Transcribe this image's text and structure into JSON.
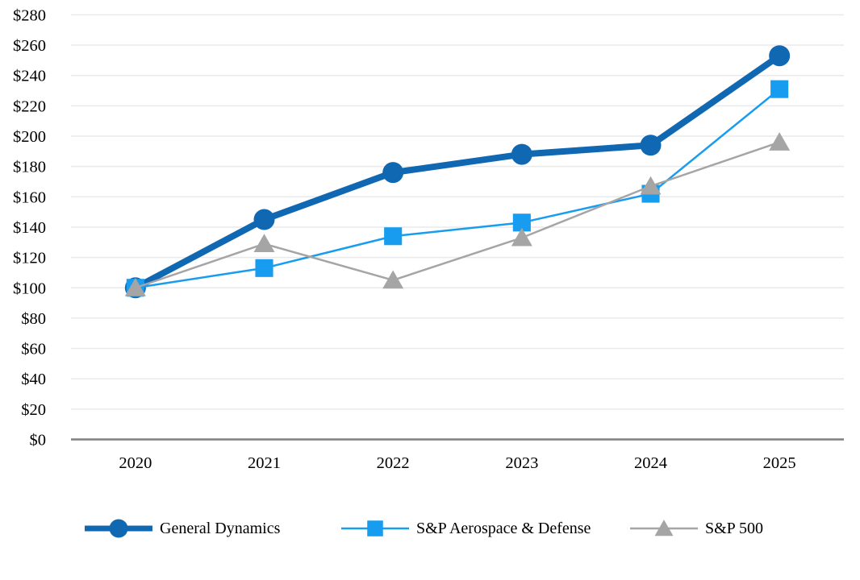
{
  "chart_data": {
    "type": "line",
    "title": "",
    "xlabel": "",
    "ylabel": "",
    "categories": [
      "2020",
      "2021",
      "2022",
      "2023",
      "2024",
      "2025"
    ],
    "series": [
      {
        "name": "General Dynamics",
        "color": "#1068B2",
        "marker": "circle",
        "line_width": 8,
        "values": [
          100,
          145,
          176,
          188,
          194,
          253
        ]
      },
      {
        "name": "S&P Aerospace & Defense",
        "color": "#189CF0",
        "marker": "square",
        "line_width": 2.5,
        "values": [
          100,
          113,
          134,
          143,
          162,
          231
        ]
      },
      {
        "name": "S&P 500",
        "color": "#A5A5A5",
        "marker": "triangle",
        "line_width": 2.5,
        "values": [
          100,
          129,
          105,
          133,
          167,
          196
        ]
      }
    ],
    "y_axis": {
      "min": 0,
      "max": 280,
      "step": 20,
      "tick_labels": [
        "$0",
        "$20",
        "$40",
        "$60",
        "$80",
        "$100",
        "$120",
        "$140",
        "$160",
        "$180",
        "$200",
        "$220",
        "$240",
        "$260",
        "$280"
      ]
    },
    "x_axis": {
      "tick_labels": [
        "2020",
        "2021",
        "2022",
        "2023",
        "2024",
        "2025"
      ]
    },
    "ylim": [
      0,
      280
    ],
    "grid": "horizontal",
    "legend_position": "bottom",
    "colors": {
      "gridline": "#EAEAEA",
      "axis_line": "#7F7F7F",
      "tick_text": "#000000",
      "background": "#FFFFFF"
    }
  }
}
